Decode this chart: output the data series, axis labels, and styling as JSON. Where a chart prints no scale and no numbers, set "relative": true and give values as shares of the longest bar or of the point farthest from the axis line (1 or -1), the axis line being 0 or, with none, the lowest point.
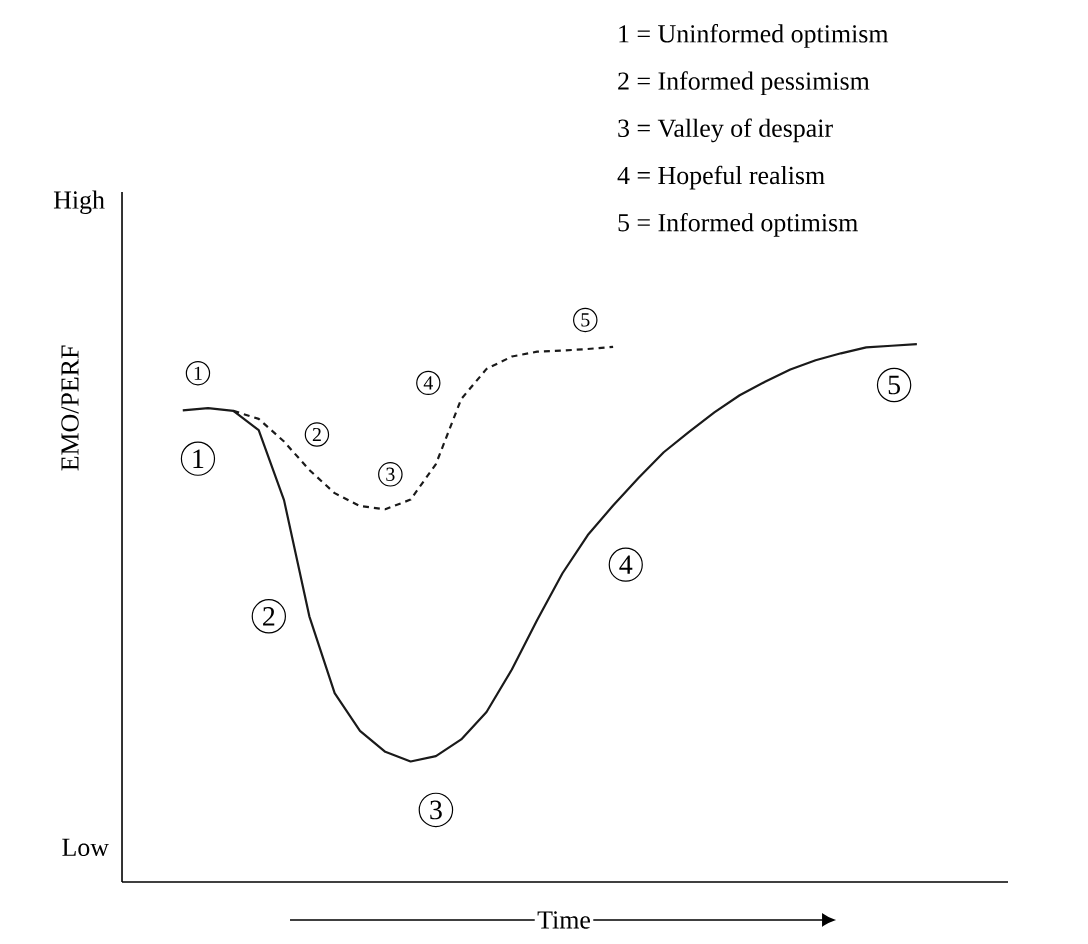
{
  "chart_data": {
    "type": "line",
    "relative": true,
    "xlabel": "Time",
    "ylabel": "EMO/PERF",
    "categories": [
      null,
      null,
      null,
      null,
      null,
      null,
      null,
      null,
      null,
      null,
      null,
      null,
      null,
      null,
      null,
      null,
      null,
      null,
      null,
      null,
      null,
      null,
      null,
      null,
      null,
      null,
      null,
      null,
      null,
      null
    ],
    "series": [
      {
        "color": "#1a1a1a",
        "line_style": "solid",
        "values": [
          0.877,
          0.881,
          0.876,
          0.84,
          0.71,
          0.494,
          0.351,
          0.281,
          0.242,
          0.224,
          0.234,
          0.265,
          0.316,
          0.395,
          0.487,
          0.574,
          0.645,
          0.7,
          0.751,
          0.799,
          0.837,
          0.873,
          0.905,
          0.93,
          0.953,
          0.97,
          0.983,
          0.994,
          0.997,
          1.0
        ]
      },
      {
        "color": "#1a1a1a",
        "line_style": "dashed",
        "values": [
          null,
          null,
          0.876,
          0.861,
          0.819,
          0.766,
          0.723,
          0.699,
          0.693,
          0.711,
          0.777,
          0.898,
          0.954,
          0.977,
          0.986,
          0.988,
          0.991,
          0.995,
          null,
          null,
          null,
          null,
          null,
          null,
          null,
          null,
          null,
          null,
          null,
          null
        ]
      }
    ],
    "annotations": [
      "1",
      "2",
      "3",
      "4",
      "5",
      "1",
      "2",
      "3",
      "4",
      "5",
      "High",
      "Low",
      "1 = Uninformed optimism",
      "2 = Informed pessimism",
      "3 = Valley of despair",
      "4 = Hopeful realism",
      "5 = Informed optimism"
    ]
  }
}
